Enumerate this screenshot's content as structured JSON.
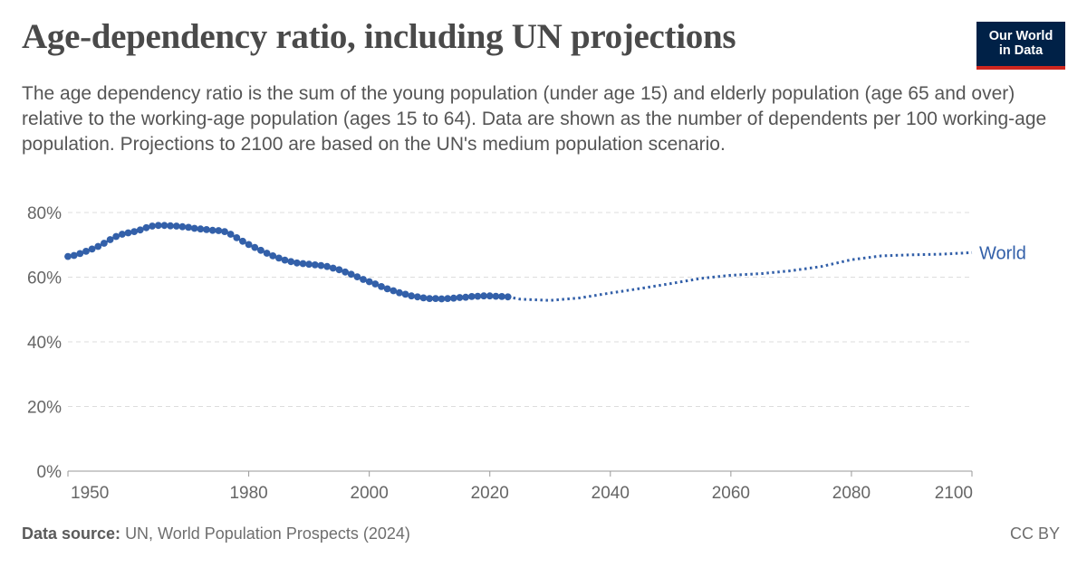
{
  "header": {
    "title": "Age-dependency ratio, including UN projections",
    "subtitle": "The age dependency ratio is the sum of the young population (under age 15) and elderly population (age 65 and over) relative to the working-age population (ages 15 to 64). Data are shown as the number of dependents per 100 working-age population. Projections to 2100 are based on the UN's medium population scenario."
  },
  "logo": {
    "line1": "Our World",
    "line2": "in Data"
  },
  "footer": {
    "source_label": "Data source:",
    "source_text": "UN, World Population Prospects (2024)",
    "license": "CC BY"
  },
  "colors": {
    "series": "#3360a9",
    "grid": "#dddddd",
    "text": "#666666",
    "title": "#4a4a4a"
  },
  "chart_data": {
    "type": "line",
    "title": "Age-dependency ratio, including UN projections",
    "xlabel": "",
    "ylabel": "",
    "xlim": [
      1950,
      2100
    ],
    "ylim": [
      0,
      80
    ],
    "x_ticks": [
      "1950",
      "1980",
      "2000",
      "2020",
      "2040",
      "2060",
      "2080",
      "2100"
    ],
    "y_ticks": [
      "0%",
      "20%",
      "40%",
      "60%",
      "80%"
    ],
    "grid": true,
    "series": [
      {
        "name": "World",
        "segment": "historical",
        "x": [
          1950,
          1951,
          1952,
          1953,
          1954,
          1955,
          1956,
          1957,
          1958,
          1959,
          1960,
          1961,
          1962,
          1963,
          1964,
          1965,
          1966,
          1967,
          1968,
          1969,
          1970,
          1971,
          1972,
          1973,
          1974,
          1975,
          1976,
          1977,
          1978,
          1979,
          1980,
          1981,
          1982,
          1983,
          1984,
          1985,
          1986,
          1987,
          1988,
          1989,
          1990,
          1991,
          1992,
          1993,
          1994,
          1995,
          1996,
          1997,
          1998,
          1999,
          2000,
          2001,
          2002,
          2003,
          2004,
          2005,
          2006,
          2007,
          2008,
          2009,
          2010,
          2011,
          2012,
          2013,
          2014,
          2015,
          2016,
          2017,
          2018,
          2019,
          2020,
          2021,
          2022,
          2023
        ],
        "values": [
          66.4,
          66.7,
          67.3,
          68.0,
          68.7,
          69.5,
          70.5,
          71.6,
          72.6,
          73.3,
          73.7,
          74.1,
          74.6,
          75.3,
          75.8,
          76.0,
          76.0,
          75.9,
          75.8,
          75.6,
          75.4,
          75.1,
          74.9,
          74.7,
          74.5,
          74.4,
          74.1,
          73.3,
          72.2,
          71.1,
          70.1,
          69.2,
          68.3,
          67.4,
          66.6,
          65.9,
          65.3,
          64.8,
          64.4,
          64.2,
          64.0,
          63.8,
          63.6,
          63.3,
          62.8,
          62.3,
          61.6,
          60.9,
          60.1,
          59.3,
          58.6,
          57.9,
          57.1,
          56.4,
          55.8,
          55.2,
          54.7,
          54.2,
          53.9,
          53.6,
          53.4,
          53.4,
          53.3,
          53.4,
          53.5,
          53.7,
          53.8,
          54.0,
          54.1,
          54.2,
          54.2,
          54.1,
          54.0,
          53.9
        ]
      },
      {
        "name": "World",
        "segment": "projection",
        "x": [
          2023,
          2025,
          2030,
          2035,
          2040,
          2045,
          2050,
          2055,
          2060,
          2065,
          2070,
          2075,
          2080,
          2085,
          2090,
          2095,
          2100
        ],
        "values": [
          53.9,
          53.2,
          52.8,
          53.6,
          55.1,
          56.5,
          58.0,
          59.6,
          60.6,
          61.1,
          62.0,
          63.3,
          65.4,
          66.6,
          66.9,
          67.1,
          67.6
        ]
      }
    ],
    "legend": "end-of-line label"
  }
}
